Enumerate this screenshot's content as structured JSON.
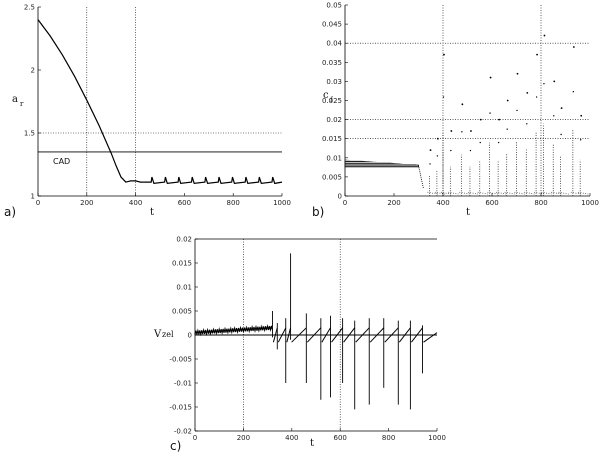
{
  "chart_data": [
    {
      "id": "a",
      "panel_label": "a)",
      "type": "line",
      "xlabel": "t",
      "ylabel": "a",
      "ylabel_sub": "r",
      "xlim": [
        0,
        1000
      ],
      "ylim": [
        1,
        2.5
      ],
      "xticks": [
        0,
        200,
        400,
        600,
        800,
        1000
      ],
      "xtick_labels": [
        "0",
        "200",
        "400",
        "600",
        "800",
        "1000"
      ],
      "yticks": [
        1,
        1.5,
        2,
        2.5
      ],
      "ytick_labels": [
        "1",
        "1.5",
        "2",
        "2.5"
      ],
      "vlines": [
        200,
        400
      ],
      "hlines": [
        1.5
      ],
      "ref_line": {
        "label": "CAD",
        "y": 1.35
      },
      "series": [
        {
          "x": [
            0,
            50,
            100,
            150,
            200,
            250,
            300,
            320,
            340,
            350,
            360,
            380,
            400,
            420
          ],
          "y": [
            2.4,
            2.27,
            2.12,
            1.95,
            1.76,
            1.56,
            1.34,
            1.24,
            1.15,
            1.13,
            1.11,
            1.12,
            1.12,
            1.11
          ]
        }
      ],
      "oscillation": {
        "x_start": 420,
        "x_end": 1000,
        "period": 55,
        "base": 1.1,
        "peak": 1.15
      }
    },
    {
      "id": "b",
      "panel_label": "b)",
      "type": "scatter",
      "xlabel": "t",
      "ylabel": "c",
      "ylabel_sub": "f",
      "xlim": [
        0,
        1000
      ],
      "ylim": [
        0,
        0.05
      ],
      "xticks": [
        0,
        200,
        400,
        600,
        800,
        1000
      ],
      "xtick_labels": [
        "0",
        "200",
        "400",
        "600",
        "800",
        "1000"
      ],
      "yticks": [
        0,
        0.005,
        0.01,
        0.015,
        0.02,
        0.025,
        0.03,
        0.035,
        0.04,
        0.045,
        0.05
      ],
      "ytick_labels": [
        "0",
        "0.005",
        "0.01",
        "0.015",
        "0.02",
        "0.025",
        "0.03",
        "0.035",
        "0.04",
        "0.045",
        "0.05"
      ],
      "vlines": [
        400,
        800
      ],
      "hlines": [
        0.015,
        0.02,
        0.04
      ],
      "band": {
        "x_start": 0,
        "x_end": 300,
        "low": 0.0075,
        "high": 0.0095
      },
      "spike_groups": [
        {
          "x": 345,
          "peak": 0.012
        },
        {
          "x": 375,
          "peak": 0.015
        },
        {
          "x": 400,
          "peak": 0.037
        },
        {
          "x": 430,
          "peak": 0.017
        },
        {
          "x": 475,
          "peak": 0.024
        },
        {
          "x": 510,
          "peak": 0.017
        },
        {
          "x": 550,
          "peak": 0.02
        },
        {
          "x": 590,
          "peak": 0.031
        },
        {
          "x": 625,
          "peak": 0.02
        },
        {
          "x": 660,
          "peak": 0.025
        },
        {
          "x": 700,
          "peak": 0.032
        },
        {
          "x": 740,
          "peak": 0.027
        },
        {
          "x": 780,
          "peak": 0.037
        },
        {
          "x": 810,
          "peak": 0.042
        },
        {
          "x": 850,
          "peak": 0.03
        },
        {
          "x": 880,
          "peak": 0.023
        },
        {
          "x": 930,
          "peak": 0.039
        },
        {
          "x": 960,
          "peak": 0.021
        }
      ]
    },
    {
      "id": "c",
      "panel_label": "c)",
      "type": "line",
      "xlabel": "t",
      "ylabel": "V",
      "ylabel_sub": "zel",
      "xlim": [
        0,
        1000
      ],
      "ylim": [
        -0.02,
        0.02
      ],
      "xticks": [
        0,
        200,
        400,
        600,
        800,
        1000
      ],
      "xtick_labels": [
        "0",
        "200",
        "400",
        "600",
        "800",
        "1000"
      ],
      "yticks": [
        -0.02,
        -0.015,
        -0.01,
        -0.005,
        0,
        0.005,
        0.01,
        0.015,
        0.02
      ],
      "ytick_labels": [
        "-0.02",
        "-0.015",
        "-0.01",
        "-0.005",
        "0",
        "0.005",
        "0.01",
        "0.015",
        "0.02"
      ],
      "vlines": [
        200,
        600
      ],
      "hlines": [
        0
      ],
      "baseline_segment": {
        "x_start": 0,
        "x_end": 320,
        "y_start": 0.0005,
        "y_end": 0.0015
      },
      "spikes": [
        {
          "x": 320,
          "up": 0.005,
          "down": -0.0005
        },
        {
          "x": 340,
          "up": 0.0025,
          "down": -0.003
        },
        {
          "x": 375,
          "up": 0.0035,
          "down": -0.01
        },
        {
          "x": 395,
          "up": 0.017,
          "down": -0.001
        },
        {
          "x": 460,
          "up": 0.0045,
          "down": -0.01
        },
        {
          "x": 520,
          "up": 0.0035,
          "down": -0.0135
        },
        {
          "x": 560,
          "up": 0.004,
          "down": -0.013
        },
        {
          "x": 610,
          "up": 0.0035,
          "down": -0.01
        },
        {
          "x": 660,
          "up": 0.003,
          "down": -0.0155
        },
        {
          "x": 720,
          "up": 0.0035,
          "down": -0.0145
        },
        {
          "x": 780,
          "up": 0.0035,
          "down": -0.011
        },
        {
          "x": 840,
          "up": 0.003,
          "down": -0.0145
        },
        {
          "x": 890,
          "up": 0.003,
          "down": -0.0155
        },
        {
          "x": 940,
          "up": 0.002,
          "down": -0.008
        }
      ]
    }
  ]
}
